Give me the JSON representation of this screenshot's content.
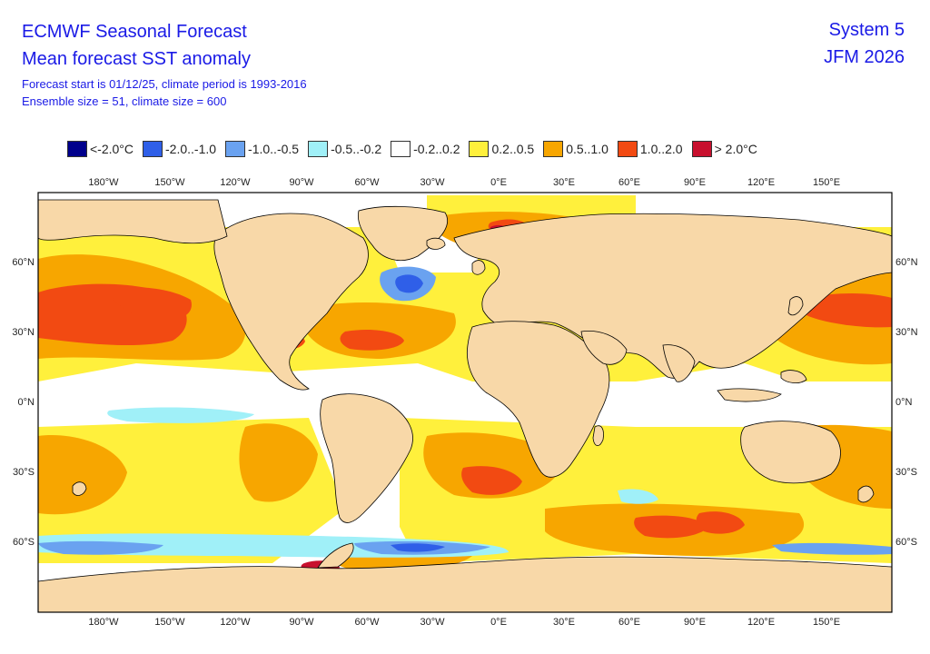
{
  "header": {
    "title": "ECMWF Seasonal Forecast",
    "subtitle": "Mean forecast SST anomaly",
    "info1": "Forecast start is 01/12/25, climate period is 1993-2016",
    "info2": "Ensemble size = 51, climate size = 600",
    "system": "System 5",
    "period": "JFM 2026"
  },
  "legend": [
    {
      "label": "<-2.0°C",
      "color": "#00008c"
    },
    {
      "label": "-2.0..-1.0",
      "color": "#2f5fe8"
    },
    {
      "label": "-1.0..-0.5",
      "color": "#6aa2f0"
    },
    {
      "label": "-0.5..-0.2",
      "color": "#a0f0f8"
    },
    {
      "label": "-0.2..0.2",
      "color": "#ffffff"
    },
    {
      "label": "0.2..0.5",
      "color": "#fff03c"
    },
    {
      "label": "0.5..1.0",
      "color": "#f7a600"
    },
    {
      "label": "1.0..2.0",
      "color": "#f24a12"
    },
    {
      "label": "> 2.0°C",
      "color": "#c8102e"
    }
  ],
  "axes": {
    "lon_labels": [
      "180°W",
      "150°W",
      "120°W",
      "90°W",
      "60°W",
      "30°W",
      "0°E",
      "30°E",
      "60°E",
      "90°E",
      "120°E",
      "150°E"
    ],
    "lat_labels": [
      "60°N",
      "30°N",
      "0°N",
      "30°S",
      "60°S"
    ]
  },
  "colors": {
    "land": "#f8d8a8",
    "ocean_neutral": "#ffffff"
  }
}
